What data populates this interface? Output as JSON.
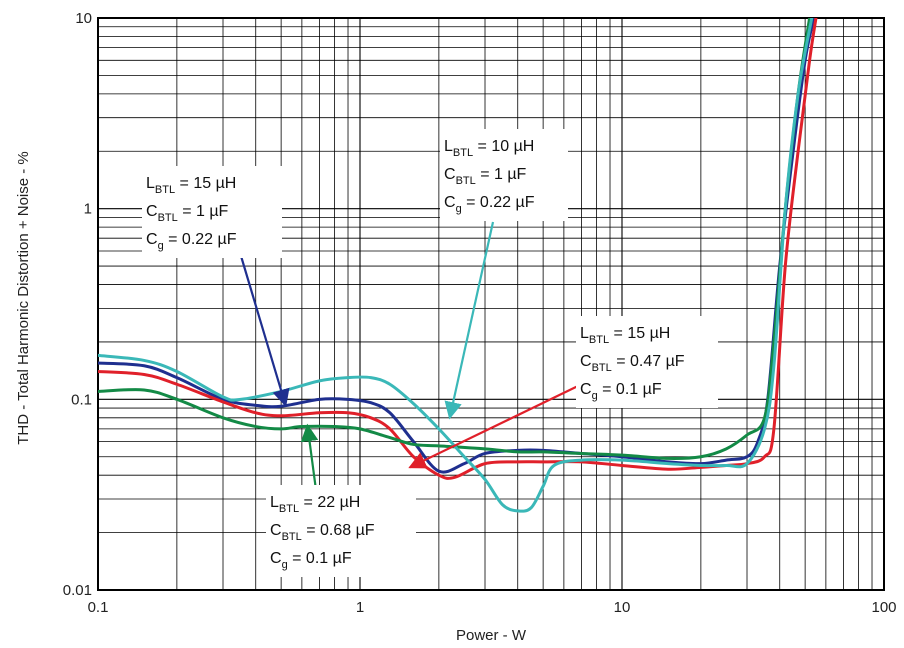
{
  "chart_data": {
    "type": "line",
    "xscale": "log",
    "yscale": "log",
    "xlim": [
      0.1,
      100
    ],
    "ylim": [
      0.01,
      10
    ],
    "grid": true,
    "xlabel": "Power - W",
    "ylabel": "THD - Total Harmonic Distortion + Noise - %",
    "x_tick_labels": [
      "0.1",
      "1",
      "10",
      "100"
    ],
    "y_tick_labels": [
      "0.01",
      "0.1",
      "1",
      "10"
    ],
    "x_tick_values": [
      0.1,
      1,
      10,
      100
    ],
    "y_tick_values": [
      0.01,
      0.1,
      1,
      10
    ],
    "series": [
      {
        "color": "#1f2f8f",
        "points": [
          [
            0.1,
            0.155
          ],
          [
            0.15,
            0.15
          ],
          [
            0.2,
            0.13
          ],
          [
            0.3,
            0.1
          ],
          [
            0.4,
            0.093
          ],
          [
            0.5,
            0.092
          ],
          [
            0.7,
            0.1
          ],
          [
            0.9,
            0.1
          ],
          [
            1.1,
            0.096
          ],
          [
            1.3,
            0.085
          ],
          [
            1.6,
            0.06
          ],
          [
            2,
            0.042
          ],
          [
            2.5,
            0.046
          ],
          [
            3,
            0.052
          ],
          [
            4,
            0.054
          ],
          [
            5,
            0.054
          ],
          [
            7,
            0.052
          ],
          [
            10,
            0.05
          ],
          [
            15,
            0.047
          ],
          [
            20,
            0.046
          ],
          [
            25,
            0.048
          ],
          [
            30,
            0.05
          ],
          [
            33,
            0.06
          ],
          [
            36,
            0.1
          ],
          [
            40,
            0.5
          ],
          [
            45,
            2
          ],
          [
            50,
            6
          ],
          [
            54,
            10
          ]
        ]
      },
      {
        "color": "#e0202a",
        "points": [
          [
            0.1,
            0.14
          ],
          [
            0.15,
            0.135
          ],
          [
            0.2,
            0.12
          ],
          [
            0.3,
            0.097
          ],
          [
            0.4,
            0.085
          ],
          [
            0.5,
            0.082
          ],
          [
            0.7,
            0.085
          ],
          [
            0.9,
            0.085
          ],
          [
            1.1,
            0.08
          ],
          [
            1.3,
            0.07
          ],
          [
            1.6,
            0.05
          ],
          [
            2,
            0.04
          ],
          [
            2.3,
            0.039
          ],
          [
            3,
            0.046
          ],
          [
            4,
            0.047
          ],
          [
            5,
            0.047
          ],
          [
            7,
            0.047
          ],
          [
            10,
            0.045
          ],
          [
            15,
            0.043
          ],
          [
            20,
            0.044
          ],
          [
            25,
            0.045
          ],
          [
            30,
            0.046
          ],
          [
            35,
            0.05
          ],
          [
            38,
            0.07
          ],
          [
            42,
            0.5
          ],
          [
            47,
            2
          ],
          [
            52,
            6
          ],
          [
            55,
            10
          ]
        ]
      },
      {
        "color": "#138a46",
        "points": [
          [
            0.1,
            0.11
          ],
          [
            0.15,
            0.112
          ],
          [
            0.2,
            0.1
          ],
          [
            0.3,
            0.08
          ],
          [
            0.4,
            0.072
          ],
          [
            0.5,
            0.07
          ],
          [
            0.6,
            0.072
          ],
          [
            0.8,
            0.072
          ],
          [
            1,
            0.07
          ],
          [
            1.3,
            0.063
          ],
          [
            1.6,
            0.058
          ],
          [
            2,
            0.057
          ],
          [
            3,
            0.055
          ],
          [
            4,
            0.053
          ],
          [
            5,
            0.053
          ],
          [
            7,
            0.052
          ],
          [
            10,
            0.051
          ],
          [
            15,
            0.049
          ],
          [
            20,
            0.05
          ],
          [
            25,
            0.055
          ],
          [
            30,
            0.065
          ],
          [
            35,
            0.08
          ],
          [
            38,
            0.2
          ],
          [
            42,
            1
          ],
          [
            47,
            4
          ],
          [
            52,
            10
          ]
        ]
      },
      {
        "color": "#3ab8b8",
        "points": [
          [
            0.1,
            0.17
          ],
          [
            0.15,
            0.16
          ],
          [
            0.2,
            0.14
          ],
          [
            0.3,
            0.103
          ],
          [
            0.35,
            0.1
          ],
          [
            0.5,
            0.11
          ],
          [
            0.7,
            0.125
          ],
          [
            0.9,
            0.13
          ],
          [
            1.1,
            0.13
          ],
          [
            1.3,
            0.12
          ],
          [
            1.6,
            0.095
          ],
          [
            2,
            0.07
          ],
          [
            2.5,
            0.05
          ],
          [
            3,
            0.038
          ],
          [
            3.5,
            0.028
          ],
          [
            4,
            0.026
          ],
          [
            4.5,
            0.027
          ],
          [
            5,
            0.035
          ],
          [
            5.5,
            0.045
          ],
          [
            7,
            0.048
          ],
          [
            10,
            0.048
          ],
          [
            15,
            0.046
          ],
          [
            20,
            0.045
          ],
          [
            25,
            0.045
          ],
          [
            30,
            0.046
          ],
          [
            35,
            0.07
          ],
          [
            38,
            0.15
          ],
          [
            42,
            1
          ],
          [
            47,
            4
          ],
          [
            53,
            10
          ]
        ]
      }
    ],
    "annotations": [
      {
        "color": "#1f2f8f",
        "lines": [
          {
            "main": "L",
            "sub": "BTL",
            "rest": " = 15 µH"
          },
          {
            "main": "C",
            "sub": "BTL",
            "rest": " = 1 µF"
          },
          {
            "main": "C",
            "sub": "g",
            "rest": " = 0.22 µF"
          }
        ],
        "arrow_target": [
          0.52,
          0.093
        ]
      },
      {
        "color": "#3ab8b8",
        "lines": [
          {
            "main": "L",
            "sub": "BTL",
            "rest": " = 10 µH"
          },
          {
            "main": "C",
            "sub": "BTL",
            "rest": " = 1 µF"
          },
          {
            "main": "C",
            "sub": "g",
            "rest": " = 0.22 µF"
          }
        ],
        "arrow_target": [
          2.2,
          0.08
        ]
      },
      {
        "color": "#e0202a",
        "lines": [
          {
            "main": "L",
            "sub": "BTL",
            "rest": " = 15 µH"
          },
          {
            "main": "C",
            "sub": "BTL",
            "rest": " = 0.47 µF"
          },
          {
            "main": "C",
            "sub": "g",
            "rest": " = 0.1 µF"
          }
        ],
        "arrow_target": [
          1.55,
          0.044
        ]
      },
      {
        "color": "#138a46",
        "lines": [
          {
            "main": "L",
            "sub": "BTL",
            "rest": " = 22 µH"
          },
          {
            "main": "C",
            "sub": "BTL",
            "rest": " = 0.68 µF"
          },
          {
            "main": "C",
            "sub": "g",
            "rest": " = 0.1 µF"
          }
        ],
        "arrow_target": [
          0.63,
          0.073
        ]
      }
    ]
  }
}
